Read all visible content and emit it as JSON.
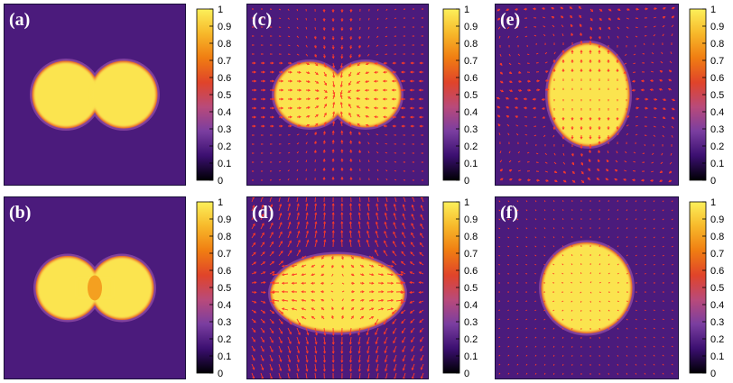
{
  "colors": {
    "background": "#ffffff",
    "arrow": "#ff3a26",
    "colormap": [
      "#000004",
      "#3b0f70",
      "#7a3ea0",
      "#b94a7a",
      "#e0442a",
      "#f07d12",
      "#f7b82a",
      "#fcf05a"
    ]
  },
  "chart_data": [
    {
      "type": "heatmap",
      "panel": "(a)",
      "colorbar": {
        "ticks": [
          "0",
          "0.1",
          "0.2",
          "0.3",
          "0.4",
          "0.5",
          "0.6",
          "0.7",
          "0.8",
          "0.9",
          "1"
        ],
        "range": [
          0,
          1
        ]
      },
      "field": {
        "shape": "two-separate-circles",
        "inside": 1,
        "outside": 0,
        "arrows": false
      }
    },
    {
      "type": "heatmap",
      "panel": "(b)",
      "colorbar": {
        "ticks": [
          "0",
          "0.1",
          "0.2",
          "0.3",
          "0.4",
          "0.5",
          "0.6",
          "0.7",
          "0.8",
          "0.9",
          "1"
        ],
        "range": [
          0,
          1
        ]
      },
      "field": {
        "shape": "two-circles-with-neck",
        "inside": 0.9,
        "outside": 0,
        "arrows": false
      }
    },
    {
      "type": "heatmap",
      "panel": "(c)",
      "colorbar": {
        "ticks": [
          "0",
          "0.1",
          "0.2",
          "0.3",
          "0.4",
          "0.5",
          "0.6",
          "0.7",
          "0.8",
          "0.9",
          "1"
        ],
        "range": [
          0,
          1
        ]
      },
      "field": {
        "shape": "merging-peanut",
        "inside": 1,
        "outside": 0,
        "arrows": true,
        "arrow_pattern": "converging-neck"
      }
    },
    {
      "type": "heatmap",
      "panel": "(d)",
      "colorbar": {
        "ticks": [
          "0",
          "0.1",
          "0.2",
          "0.3",
          "0.4",
          "0.5",
          "0.6",
          "0.7",
          "0.8",
          "0.9",
          "1"
        ],
        "range": [
          0,
          1
        ]
      },
      "field": {
        "shape": "horizontal-ellipse",
        "inside": 1,
        "outside": 0,
        "arrows": true,
        "arrow_pattern": "dipole-flow"
      }
    },
    {
      "type": "heatmap",
      "panel": "(e)",
      "colorbar": {
        "ticks": [
          "0",
          "0.1",
          "0.2",
          "0.3",
          "0.4",
          "0.5",
          "0.6",
          "0.7",
          "0.8",
          "0.9",
          "1"
        ],
        "range": [
          0,
          1
        ]
      },
      "field": {
        "shape": "vertical-ellipse",
        "inside": 1,
        "outside": 0,
        "arrows": true,
        "arrow_pattern": "weak-vortices"
      }
    },
    {
      "type": "heatmap",
      "panel": "(f)",
      "colorbar": {
        "ticks": [
          "0",
          "0.1",
          "0.2",
          "0.3",
          "0.4",
          "0.5",
          "0.6",
          "0.7",
          "0.8",
          "0.9",
          "1"
        ],
        "range": [
          0,
          1
        ]
      },
      "field": {
        "shape": "circle",
        "inside": 1,
        "outside": 0,
        "arrows": true,
        "arrow_pattern": "residual"
      }
    }
  ]
}
